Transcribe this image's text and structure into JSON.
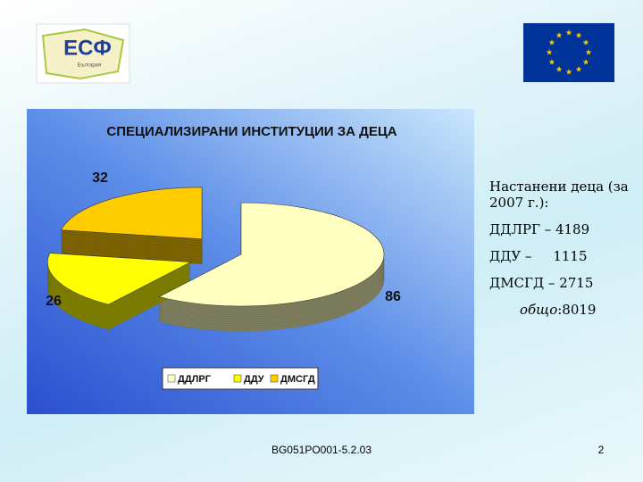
{
  "chart_data": {
    "type": "pie",
    "title": "СПЕЦИАЛИЗИРАНИ ИНСТИТУЦИИ ЗА ДЕЦА",
    "categories": [
      "ДДЛРГ",
      "ДДУ",
      "ДМСГД"
    ],
    "values": [
      86,
      26,
      32
    ],
    "colors": [
      "#ffffc0",
      "#ffff00",
      "#ffcc00"
    ],
    "legend": "bottom"
  },
  "logo": {
    "text": "ЕСФ",
    "country": "България"
  },
  "notes": {
    "heading": "Настанени деца (за 2007 г.):",
    "items": [
      "ДДЛРГ – 4189",
      "ДДУ –     1115",
      "ДМСГД – 2715"
    ],
    "total_label": "общо",
    "total": ":8019"
  },
  "footer": {
    "code": "BG051PO001-5.2.03",
    "page": "2"
  }
}
